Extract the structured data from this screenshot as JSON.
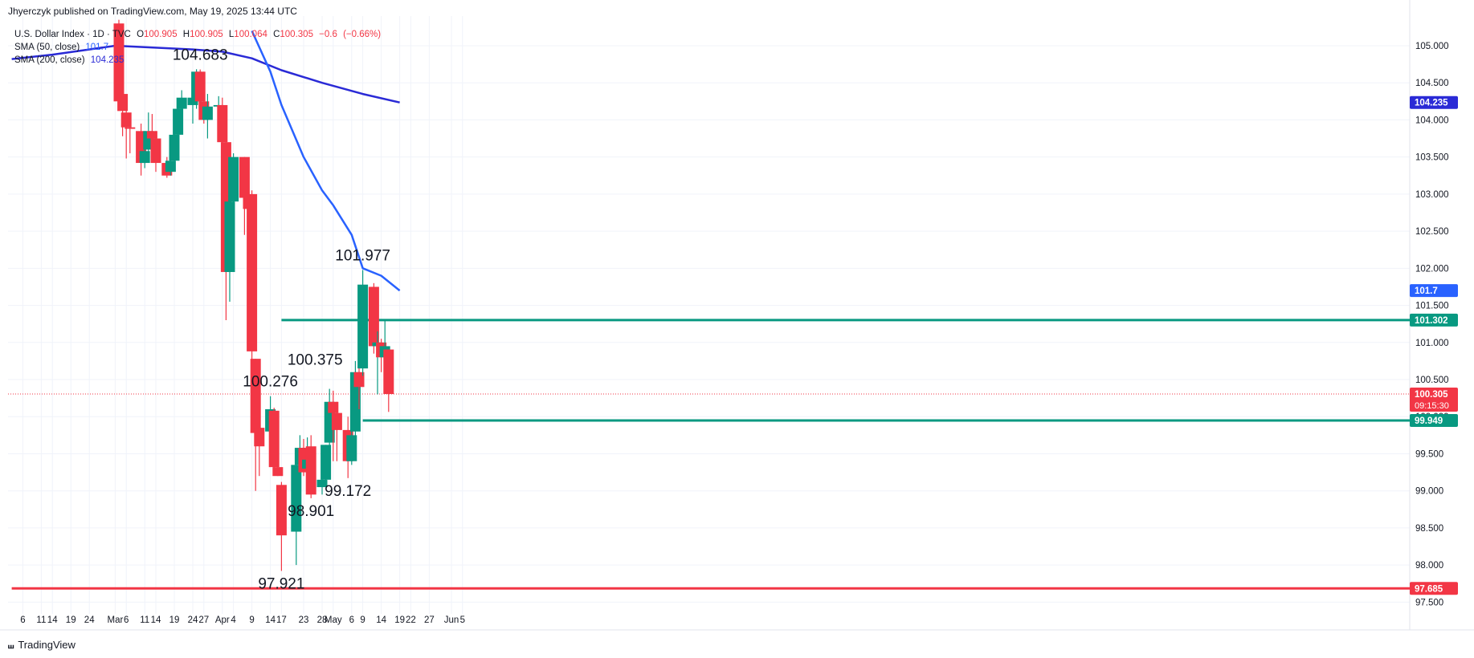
{
  "header": {
    "publisher": "Jhyerczyk published on TradingView.com, May 19, 2025 13:44 UTC"
  },
  "legend": {
    "symbol": "U.S. Dollar Index · 1D · TVC",
    "ohlc": [
      {
        "k": "O",
        "v": "100.905"
      },
      {
        "k": "H",
        "v": "100.905"
      },
      {
        "k": "L",
        "v": "100.064"
      },
      {
        "k": "C",
        "v": "100.305"
      }
    ],
    "change": "−0.6",
    "change_pct": "(−0.66%)",
    "sma50_label": "SMA (50, close)",
    "sma50_value": "101.7",
    "sma200_label": "SMA (200, close)",
    "sma200_value": "104.235"
  },
  "brand": {
    "icon": "tradingview-logo-icon",
    "name": "TradingView"
  },
  "chart_data": {
    "type": "candlestick",
    "colors": {
      "up": "#089981",
      "down": "#f23645",
      "sma50": "#2962ff",
      "sma200": "#2a2ad6",
      "support": "#f23645",
      "levels": "#089981"
    },
    "ylim": [
      97.45,
      105.4
    ],
    "y_ticks": [
      "97.500",
      "98.000",
      "98.500",
      "99.000",
      "99.500",
      "100.000",
      "100.500",
      "101.000",
      "101.500",
      "102.000",
      "102.500",
      "103.000",
      "103.500",
      "104.000",
      "104.500",
      "105.000"
    ],
    "x_ticks": [
      {
        "label": "6",
        "date": "2025-02-06"
      },
      {
        "label": "11",
        "date": "2025-02-11"
      },
      {
        "label": "14",
        "date": "2025-02-14"
      },
      {
        "label": "19",
        "date": "2025-02-19"
      },
      {
        "label": "24",
        "date": "2025-02-24"
      },
      {
        "label": "Mar",
        "date": "2025-03-03"
      },
      {
        "label": "6",
        "date": "2025-03-06"
      },
      {
        "label": "11",
        "date": "2025-03-11"
      },
      {
        "label": "14",
        "date": "2025-03-14"
      },
      {
        "label": "19",
        "date": "2025-03-19"
      },
      {
        "label": "24",
        "date": "2025-03-24"
      },
      {
        "label": "27",
        "date": "2025-03-27"
      },
      {
        "label": "Apr",
        "date": "2025-04-01"
      },
      {
        "label": "4",
        "date": "2025-04-04"
      },
      {
        "label": "9",
        "date": "2025-04-09"
      },
      {
        "label": "14",
        "date": "2025-04-14"
      },
      {
        "label": "17",
        "date": "2025-04-17"
      },
      {
        "label": "23",
        "date": "2025-04-23"
      },
      {
        "label": "28",
        "date": "2025-04-28"
      },
      {
        "label": "May",
        "date": "2025-05-01"
      },
      {
        "label": "6",
        "date": "2025-05-06"
      },
      {
        "label": "9",
        "date": "2025-05-09"
      },
      {
        "label": "14",
        "date": "2025-05-14"
      },
      {
        "label": "19",
        "date": "2025-05-19"
      },
      {
        "label": "22",
        "date": "2025-05-22"
      },
      {
        "label": "27",
        "date": "2025-05-27"
      },
      {
        "label": "Jun",
        "date": "2025-06-02"
      },
      {
        "label": "5",
        "date": "2025-06-05"
      }
    ],
    "candles": [
      {
        "date": "2025-03-04",
        "o": 105.3,
        "h": 105.35,
        "l": 104.25,
        "c": 104.25
      },
      {
        "date": "2025-03-05",
        "o": 104.35,
        "h": 104.4,
        "l": 103.78,
        "c": 104.12
      },
      {
        "date": "2025-03-06",
        "o": 104.1,
        "h": 104.2,
        "l": 103.48,
        "c": 103.9
      },
      {
        "date": "2025-03-07",
        "o": 103.9,
        "h": 104.05,
        "l": 103.55,
        "c": 103.88
      },
      {
        "date": "2025-03-10",
        "o": 103.85,
        "h": 103.95,
        "l": 103.25,
        "c": 103.42
      },
      {
        "date": "2025-03-11",
        "o": 103.42,
        "h": 103.62,
        "l": 103.35,
        "c": 103.58
      },
      {
        "date": "2025-03-12",
        "o": 103.6,
        "h": 104.1,
        "l": 103.45,
        "c": 103.85
      },
      {
        "date": "2025-03-13",
        "o": 103.85,
        "h": 104.08,
        "l": 103.7,
        "c": 103.75
      },
      {
        "date": "2025-03-14",
        "o": 103.75,
        "h": 103.85,
        "l": 103.3,
        "c": 103.42
      },
      {
        "date": "2025-03-17",
        "o": 103.42,
        "h": 103.5,
        "l": 103.22,
        "c": 103.25
      },
      {
        "date": "2025-03-18",
        "o": 103.3,
        "h": 103.5,
        "l": 103.25,
        "c": 103.45
      },
      {
        "date": "2025-03-19",
        "o": 103.45,
        "h": 103.95,
        "l": 103.38,
        "c": 103.8
      },
      {
        "date": "2025-03-20",
        "o": 103.8,
        "h": 104.25,
        "l": 103.78,
        "c": 104.15
      },
      {
        "date": "2025-03-21",
        "o": 104.15,
        "h": 104.4,
        "l": 104.0,
        "c": 104.3
      },
      {
        "date": "2025-03-24",
        "o": 104.2,
        "h": 104.35,
        "l": 103.95,
        "c": 104.3
      },
      {
        "date": "2025-03-25",
        "o": 104.25,
        "h": 104.683,
        "l": 104.15,
        "c": 104.65
      },
      {
        "date": "2025-03-26",
        "o": 104.65,
        "h": 104.68,
        "l": 104.1,
        "c": 104.25
      },
      {
        "date": "2025-03-27",
        "o": 104.25,
        "h": 104.5,
        "l": 103.95,
        "c": 104.0
      },
      {
        "date": "2025-03-28",
        "o": 104.0,
        "h": 104.35,
        "l": 103.75,
        "c": 104.18
      },
      {
        "date": "2025-03-31",
        "o": 104.18,
        "h": 104.32,
        "l": 104.0,
        "c": 104.2
      },
      {
        "date": "2025-04-01",
        "o": 104.2,
        "h": 104.3,
        "l": 103.4,
        "c": 103.7
      },
      {
        "date": "2025-04-02",
        "o": 103.7,
        "h": 103.75,
        "l": 101.3,
        "c": 101.95
      },
      {
        "date": "2025-04-03",
        "o": 101.95,
        "h": 103.22,
        "l": 101.55,
        "c": 102.9
      },
      {
        "date": "2025-04-04",
        "o": 102.9,
        "h": 103.55,
        "l": 102.55,
        "c": 103.5
      },
      {
        "date": "2025-04-07",
        "o": 103.5,
        "h": 103.5,
        "l": 102.45,
        "c": 102.95
      },
      {
        "date": "2025-04-08",
        "o": 102.95,
        "h": 103.35,
        "l": 101.85,
        "c": 102.8
      },
      {
        "date": "2025-04-09",
        "o": 103.0,
        "h": 103.05,
        "l": 100.7,
        "c": 100.88
      },
      {
        "date": "2025-04-10",
        "o": 100.78,
        "h": 100.78,
        "l": 99.0,
        "c": 99.78
      },
      {
        "date": "2025-04-11",
        "o": 99.85,
        "h": 100.1,
        "l": 99.2,
        "c": 99.6
      },
      {
        "date": "2025-04-14",
        "o": 99.8,
        "h": 100.276,
        "l": 99.5,
        "c": 100.1
      },
      {
        "date": "2025-04-15",
        "o": 100.08,
        "h": 100.12,
        "l": 99.25,
        "c": 99.32
      },
      {
        "date": "2025-04-16",
        "o": 99.32,
        "h": 99.4,
        "l": 99.2,
        "c": 99.2
      },
      {
        "date": "2025-04-17",
        "o": 99.08,
        "h": 99.12,
        "l": 97.921,
        "c": 98.4
      },
      {
        "date": "2025-04-21",
        "o": 98.45,
        "h": 99.45,
        "l": 98.0,
        "c": 99.35
      },
      {
        "date": "2025-04-22",
        "o": 99.35,
        "h": 99.75,
        "l": 98.8,
        "c": 99.58
      },
      {
        "date": "2025-04-23",
        "o": 99.58,
        "h": 99.7,
        "l": 99.2,
        "c": 99.25
      },
      {
        "date": "2025-04-24",
        "o": 99.3,
        "h": 99.72,
        "l": 99.2,
        "c": 99.42
      },
      {
        "date": "2025-04-25",
        "o": 99.6,
        "h": 99.75,
        "l": 98.901,
        "c": 98.95
      },
      {
        "date": "2025-04-28",
        "o": 99.05,
        "h": 99.3,
        "l": 98.95,
        "c": 99.15
      },
      {
        "date": "2025-04-29",
        "o": 99.15,
        "h": 99.62,
        "l": 99.1,
        "c": 99.62
      },
      {
        "date": "2025-04-30",
        "o": 99.65,
        "h": 100.375,
        "l": 99.55,
        "c": 100.2
      },
      {
        "date": "2025-05-01",
        "o": 100.2,
        "h": 100.35,
        "l": 99.4,
        "c": 100.05
      },
      {
        "date": "2025-05-02",
        "o": 100.05,
        "h": 100.2,
        "l": 99.4,
        "c": 99.82
      },
      {
        "date": "2025-05-05",
        "o": 99.82,
        "h": 100.0,
        "l": 99.172,
        "c": 99.4
      },
      {
        "date": "2025-05-06",
        "o": 99.4,
        "h": 99.85,
        "l": 99.35,
        "c": 99.75
      },
      {
        "date": "2025-05-07",
        "o": 99.8,
        "h": 100.75,
        "l": 99.6,
        "c": 100.6
      },
      {
        "date": "2025-05-08",
        "o": 100.6,
        "h": 100.85,
        "l": 100.1,
        "c": 100.4
      },
      {
        "date": "2025-05-09",
        "o": 100.65,
        "h": 101.977,
        "l": 100.55,
        "c": 101.78
      },
      {
        "date": "2025-05-12",
        "o": 101.75,
        "h": 101.8,
        "l": 100.85,
        "c": 100.95
      },
      {
        "date": "2025-05-13",
        "o": 100.95,
        "h": 101.15,
        "l": 100.3,
        "c": 101.0
      },
      {
        "date": "2025-05-14",
        "o": 101.0,
        "h": 101.05,
        "l": 100.6,
        "c": 100.8
      },
      {
        "date": "2025-05-15",
        "o": 100.8,
        "h": 101.3,
        "l": 100.55,
        "c": 100.95
      },
      {
        "date": "2025-05-16",
        "o": 100.905,
        "h": 100.905,
        "l": 100.064,
        "c": 100.305
      }
    ],
    "sma50": [
      {
        "date": "2025-04-09",
        "v": 105.2
      },
      {
        "date": "2025-04-14",
        "v": 104.65
      },
      {
        "date": "2025-04-17",
        "v": 104.2
      },
      {
        "date": "2025-04-23",
        "v": 103.5
      },
      {
        "date": "2025-04-28",
        "v": 103.05
      },
      {
        "date": "2025-05-01",
        "v": 102.85
      },
      {
        "date": "2025-05-06",
        "v": 102.45
      },
      {
        "date": "2025-05-09",
        "v": 102.0
      },
      {
        "date": "2025-05-14",
        "v": 101.9
      },
      {
        "date": "2025-05-19",
        "v": 101.7
      }
    ],
    "sma200": [
      {
        "date": "2025-02-03",
        "v": 104.82
      },
      {
        "date": "2025-02-14",
        "v": 104.88
      },
      {
        "date": "2025-02-24",
        "v": 104.95
      },
      {
        "date": "2025-03-03",
        "v": 105.0
      },
      {
        "date": "2025-03-11",
        "v": 104.98
      },
      {
        "date": "2025-03-24",
        "v": 104.95
      },
      {
        "date": "2025-04-01",
        "v": 104.92
      },
      {
        "date": "2025-04-09",
        "v": 104.83
      },
      {
        "date": "2025-04-17",
        "v": 104.67
      },
      {
        "date": "2025-04-28",
        "v": 104.5
      },
      {
        "date": "2025-05-09",
        "v": 104.35
      },
      {
        "date": "2025-05-19",
        "v": 104.235
      }
    ],
    "levels": [
      {
        "value": 101.302,
        "label": "101.302",
        "color": "#089981",
        "start": "2025-04-17",
        "width": 3
      },
      {
        "value": 99.949,
        "label": "99.949",
        "color": "#089981",
        "start": "2025-05-09",
        "width": 3
      },
      {
        "value": 97.685,
        "label": "97.685",
        "color": "#f23645",
        "start": "2025-02-03",
        "width": 3
      }
    ],
    "price_tags": [
      {
        "value": 104.235,
        "label": "104.235",
        "color": "#2a2ad6"
      },
      {
        "value": 101.7,
        "label": "101.7",
        "color": "#2962ff"
      },
      {
        "value": 100.305,
        "label": "100.305",
        "sub": "09:15:30",
        "color": "#f23645"
      }
    ],
    "last_price": 100.305,
    "annotations": [
      {
        "text": "104.683",
        "date": "2025-03-26",
        "value": 104.683,
        "pos": "above"
      },
      {
        "text": "100.276",
        "date": "2025-04-14",
        "value": 100.276,
        "pos": "above"
      },
      {
        "text": "97.921",
        "date": "2025-04-17",
        "value": 97.921,
        "pos": "below"
      },
      {
        "text": "98.901",
        "date": "2025-04-25",
        "value": 98.901,
        "pos": "below"
      },
      {
        "text": "100.375",
        "date": "2025-04-30",
        "value": 100.375,
        "pos": "above-left"
      },
      {
        "text": "99.172",
        "date": "2025-05-05",
        "value": 99.172,
        "pos": "below"
      },
      {
        "text": "101.977",
        "date": "2025-05-09",
        "value": 101.977,
        "pos": "above"
      }
    ]
  }
}
